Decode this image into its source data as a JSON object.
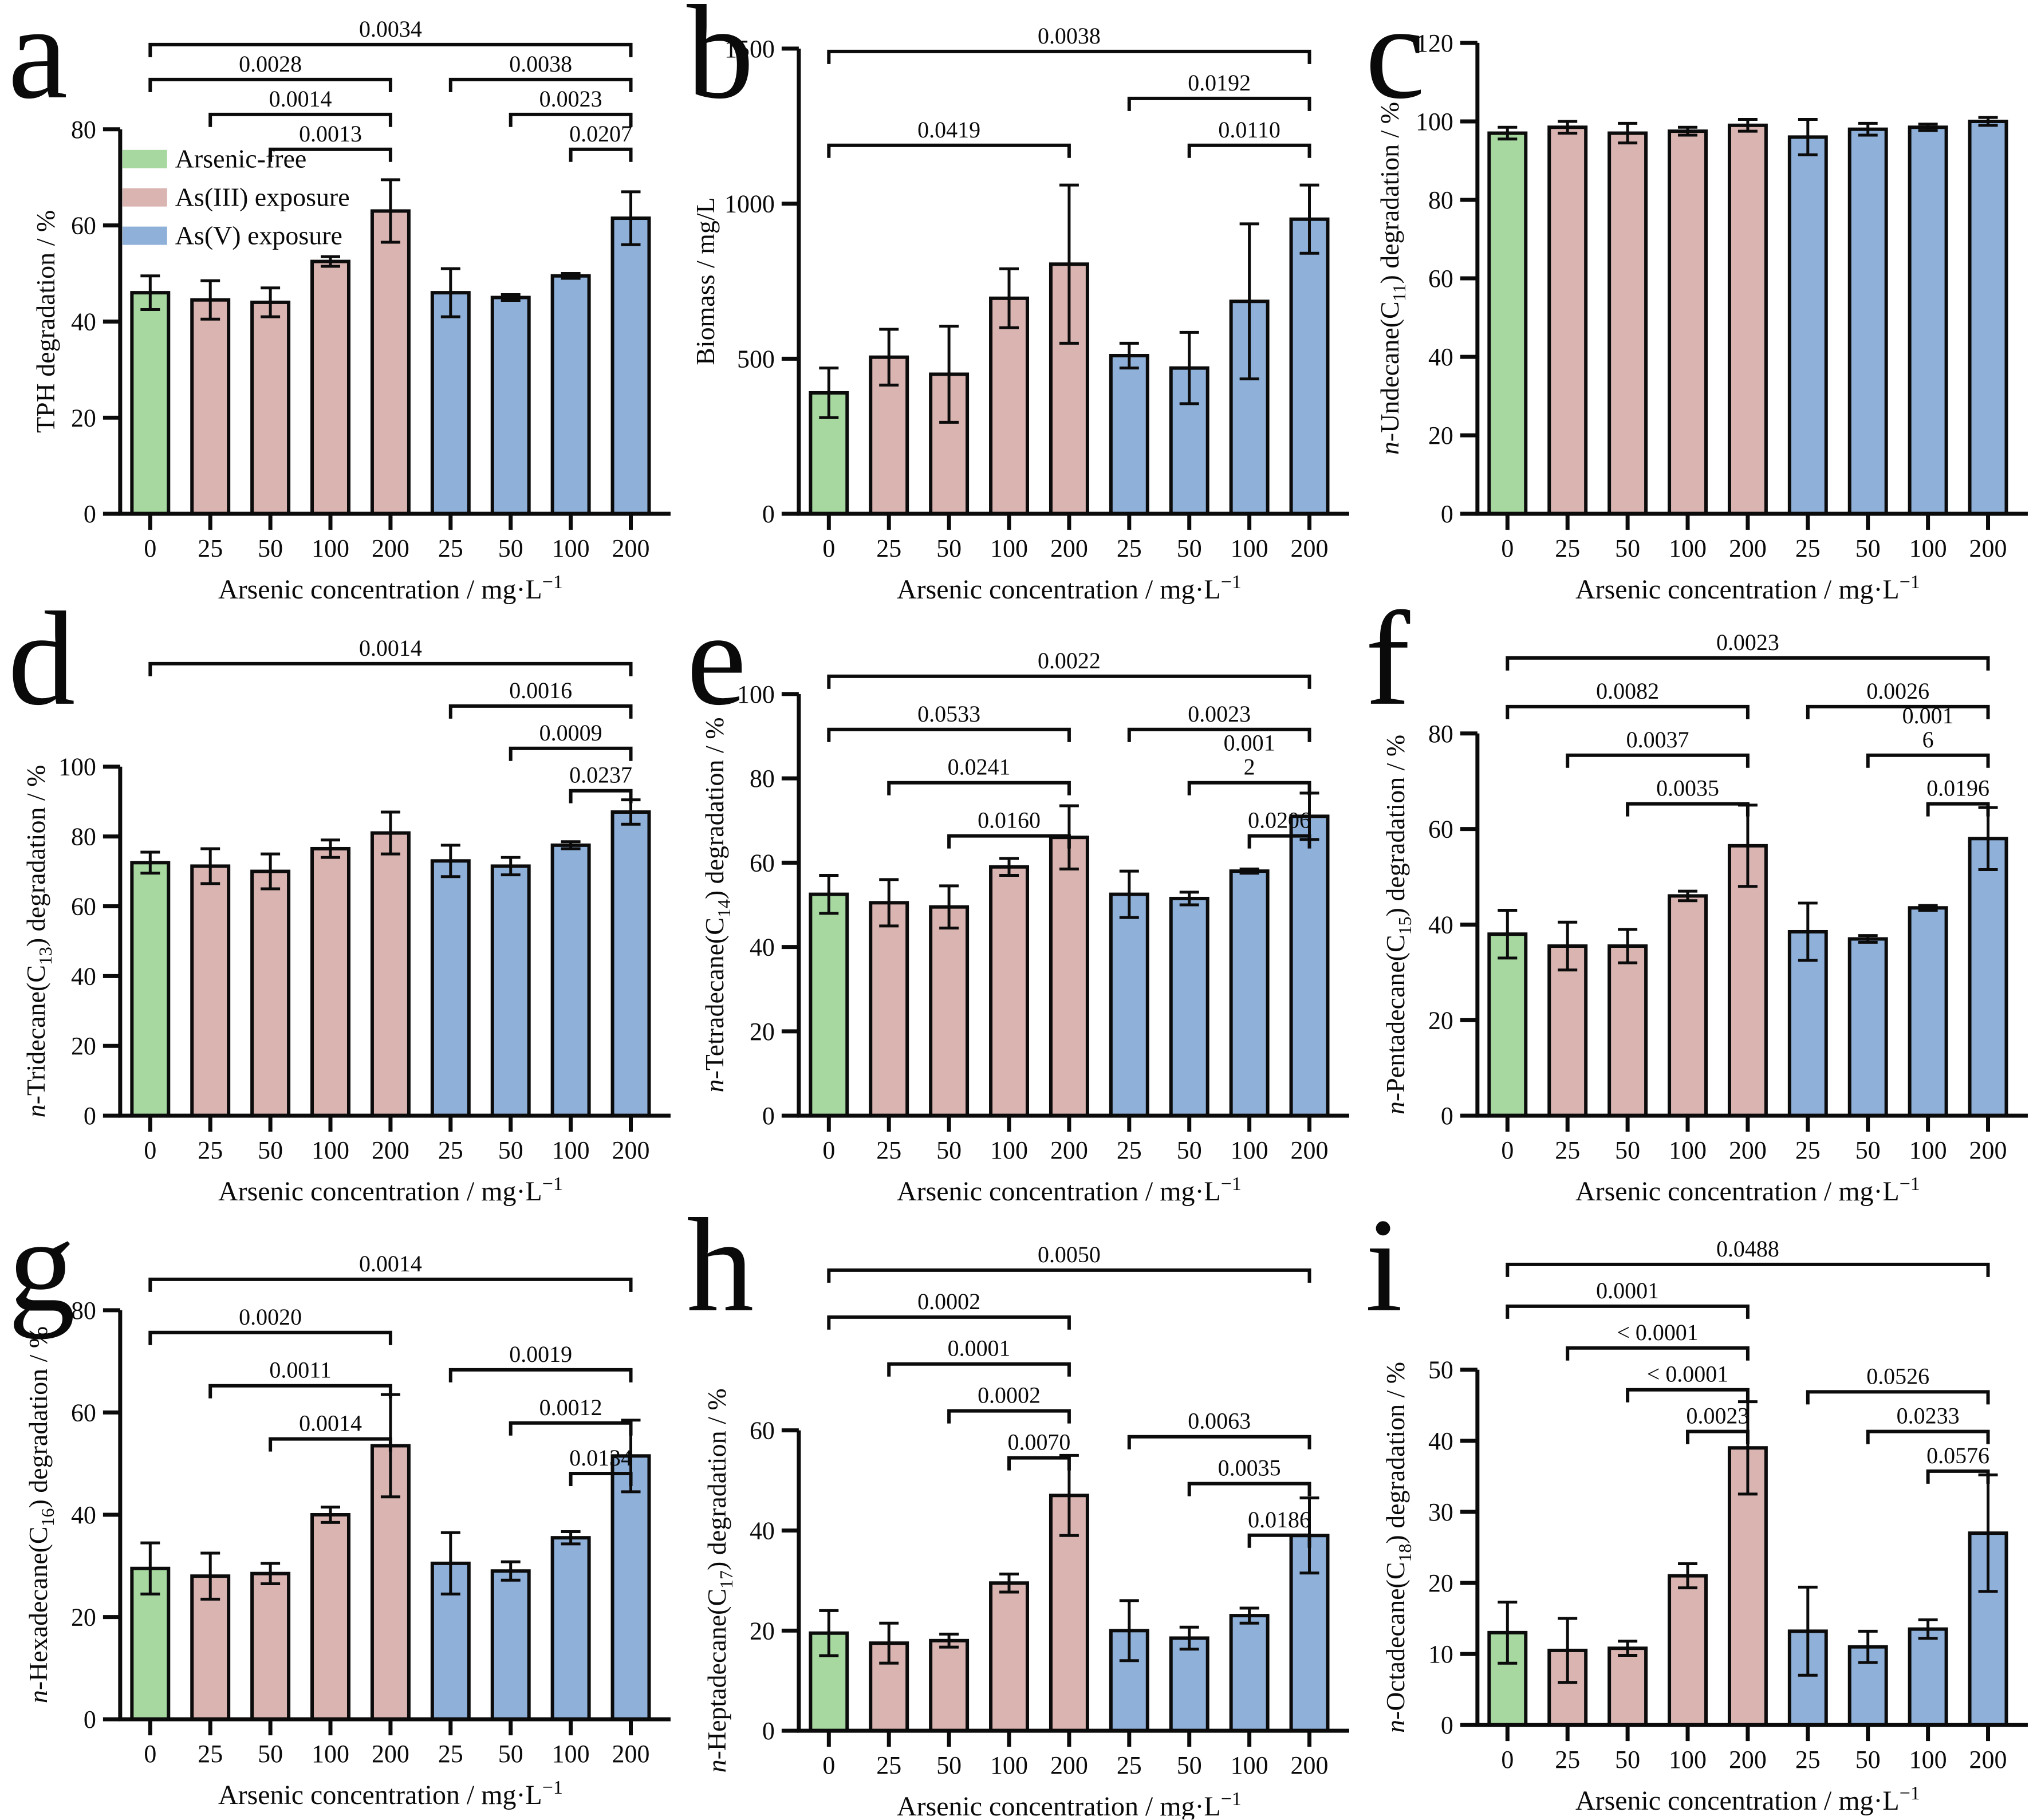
{
  "figure": {
    "background": "#ffffff",
    "xlabel": {
      "text": "Arsenic concentration / mg·L",
      "sup": "−1"
    },
    "categories": [
      "0",
      "25",
      "50",
      "100",
      "200",
      "25",
      "50",
      "100",
      "200"
    ],
    "bar_groups": [
      "free",
      "as3",
      "as3",
      "as3",
      "as3",
      "as5",
      "as5",
      "as5",
      "as5"
    ],
    "colors": {
      "free": "#a6d8a0",
      "as3": "#d9b4b1",
      "as5": "#8fb1d9",
      "edge": "#0b0b0b",
      "text": "#0a0a0a"
    },
    "legend": {
      "shown_in_panel": "a",
      "items": [
        {
          "label": "Arsenic-free",
          "key": "free"
        },
        {
          "label": "As(III) exposure",
          "key": "as3"
        },
        {
          "label": "As(V) exposure",
          "key": "as5"
        }
      ]
    }
  },
  "chart_data": [
    {
      "panel": "a",
      "type": "bar",
      "ylabel_segments": [
        {
          "t": "TPH degradation / %"
        }
      ],
      "ylim": [
        0,
        80
      ],
      "yticks": [
        0,
        20,
        40,
        60,
        80
      ],
      "values": [
        46,
        44.5,
        44,
        52.5,
        63,
        46,
        45,
        49.5,
        61.5
      ],
      "errors": [
        3.5,
        4,
        3,
        1,
        6.5,
        5,
        0.6,
        0.5,
        5.5
      ],
      "brackets": [
        {
          "from": 0,
          "to": 8,
          "row": 0,
          "label": "0.0034"
        },
        {
          "from": 0,
          "to": 4,
          "row": 1,
          "label": "0.0028"
        },
        {
          "from": 5,
          "to": 8,
          "row": 1,
          "label": "0.0038"
        },
        {
          "from": 1,
          "to": 4,
          "row": 2,
          "label": "0.0014"
        },
        {
          "from": 6,
          "to": 8,
          "row": 2,
          "label": "0.0023"
        },
        {
          "from": 2,
          "to": 4,
          "row": 3,
          "label": "0.0013"
        },
        {
          "from": 7,
          "to": 8,
          "row": 3,
          "label": "0.0207"
        }
      ],
      "layout": {
        "top": 226,
        "bottom": 898,
        "bracket_y0": 78,
        "bracket_pitch": 61,
        "ylabel_x": 95,
        "show_legend": true
      }
    },
    {
      "panel": "b",
      "type": "bar",
      "ylabel_segments": [
        {
          "t": "Biomass / mg/L"
        }
      ],
      "ylim": [
        0,
        1500
      ],
      "yticks": [
        0,
        500,
        1000,
        1500
      ],
      "values": [
        390,
        505,
        450,
        695,
        805,
        510,
        470,
        685,
        950
      ],
      "errors": [
        80,
        90,
        155,
        95,
        255,
        40,
        115,
        250,
        110
      ],
      "brackets": [
        {
          "from": 0,
          "to": 8,
          "row": 0,
          "label": "0.0038"
        },
        {
          "from": 5,
          "to": 8,
          "row": 1,
          "label": "0.0192"
        },
        {
          "from": 0,
          "to": 4,
          "row": 2,
          "label": "0.0419"
        },
        {
          "from": 6,
          "to": 8,
          "row": 2,
          "label": "0.0110"
        }
      ],
      "layout": {
        "top": 85,
        "bottom": 898,
        "bracket_y0": 90,
        "bracket_pitch": 82,
        "ylabel_x": 62,
        "show_legend": false
      }
    },
    {
      "panel": "c",
      "type": "bar",
      "ylabel_segments": [
        {
          "t": "n",
          "i": 1
        },
        {
          "t": "-Undecane(C"
        },
        {
          "t": "11",
          "sub": 1
        },
        {
          "t": ") degradation / %"
        }
      ],
      "ylim": [
        0,
        120
      ],
      "yticks": [
        0,
        20,
        40,
        60,
        80,
        100,
        120
      ],
      "values": [
        97,
        98.5,
        97,
        97.5,
        99,
        96,
        98,
        98.5,
        100
      ],
      "errors": [
        1.5,
        1.5,
        2.5,
        1,
        1.5,
        4.5,
        1.5,
        0.8,
        1
      ],
      "brackets": [],
      "layout": {
        "top": 75,
        "bottom": 898,
        "bracket_y0": 0,
        "bracket_pitch": 60,
        "ylabel_x": 72,
        "show_legend": false
      }
    },
    {
      "panel": "d",
      "type": "bar",
      "ylabel_segments": [
        {
          "t": "n",
          "i": 1
        },
        {
          "t": "-Tridecane(C"
        },
        {
          "t": "13",
          "sub": 1
        },
        {
          "t": ") degradation / %"
        }
      ],
      "ylim": [
        0,
        100
      ],
      "yticks": [
        0,
        20,
        40,
        60,
        80,
        100
      ],
      "values": [
        72.5,
        71.5,
        70,
        76.5,
        81,
        73,
        71.5,
        77.5,
        87
      ],
      "errors": [
        3,
        5,
        5,
        2.5,
        6,
        4.5,
        2.5,
        1,
        3.5
      ],
      "brackets": [
        {
          "from": 0,
          "to": 8,
          "row": 0,
          "label": "0.0014"
        },
        {
          "from": 5,
          "to": 8,
          "row": 1,
          "label": "0.0016"
        },
        {
          "from": 6,
          "to": 8,
          "row": 2,
          "label": "0.0009"
        },
        {
          "from": 7,
          "to": 8,
          "row": 3,
          "label": "0.0237"
        }
      ],
      "layout": {
        "top": 280,
        "bottom": 890,
        "bracket_y0": 100,
        "bracket_pitch": 74,
        "ylabel_x": 78,
        "show_legend": false
      }
    },
    {
      "panel": "e",
      "type": "bar",
      "ylabel_segments": [
        {
          "t": "n",
          "i": 1
        },
        {
          "t": "-Tetradecane(C"
        },
        {
          "t": "14",
          "sub": 1
        },
        {
          "t": ") degradation / %"
        }
      ],
      "ylim": [
        0,
        100
      ],
      "yticks": [
        0,
        20,
        40,
        60,
        80,
        100
      ],
      "values": [
        52.5,
        50.5,
        49.5,
        59,
        66,
        52.5,
        51.5,
        58,
        71
      ],
      "errors": [
        4.5,
        5.5,
        5,
        2,
        7.5,
        5.5,
        1.5,
        0.5,
        5.5
      ],
      "brackets": [
        {
          "from": 0,
          "to": 8,
          "row": 0,
          "label": "0.0022"
        },
        {
          "from": 0,
          "to": 4,
          "row": 1,
          "label": "0.0533"
        },
        {
          "from": 5,
          "to": 8,
          "row": 1,
          "label": "0.0023"
        },
        {
          "from": 1,
          "to": 4,
          "row": 2,
          "label": "0.0241"
        },
        {
          "from": 6,
          "to": 8,
          "row": 2,
          "label": "0.001\n2"
        },
        {
          "from": 2,
          "to": 4,
          "row": 3,
          "label": "0.0160"
        },
        {
          "from": 7,
          "to": 8,
          "row": 3,
          "label": "0.0206"
        }
      ],
      "layout": {
        "top": 153,
        "bottom": 890,
        "bracket_y0": 122,
        "bracket_pitch": 93,
        "ylabel_x": 78,
        "show_legend": false
      }
    },
    {
      "panel": "f",
      "type": "bar",
      "ylabel_segments": [
        {
          "t": "n",
          "i": 1
        },
        {
          "t": "-Pentadecane(C"
        },
        {
          "t": "15",
          "sub": 1
        },
        {
          "t": ") degradation / %"
        }
      ],
      "ylim": [
        0,
        80
      ],
      "yticks": [
        0,
        20,
        40,
        60,
        80
      ],
      "values": [
        38,
        35.5,
        35.5,
        46,
        56.5,
        38.5,
        37,
        43.5,
        58
      ],
      "errors": [
        5,
        5,
        3.5,
        1,
        8.5,
        6,
        0.7,
        0.5,
        6.5
      ],
      "brackets": [
        {
          "from": 0,
          "to": 8,
          "row": 0,
          "label": "0.0023"
        },
        {
          "from": 0,
          "to": 4,
          "row": 1,
          "label": "0.0082"
        },
        {
          "from": 5,
          "to": 8,
          "row": 1,
          "label": "0.0026"
        },
        {
          "from": 1,
          "to": 4,
          "row": 2,
          "label": "0.0037"
        },
        {
          "from": 6,
          "to": 8,
          "row": 2,
          "label": "0.001\n6"
        },
        {
          "from": 2,
          "to": 4,
          "row": 3,
          "label": "0.0035"
        },
        {
          "from": 7,
          "to": 8,
          "row": 3,
          "label": "0.0196"
        }
      ],
      "layout": {
        "top": 222,
        "bottom": 890,
        "bracket_y0": 90,
        "bracket_pitch": 85,
        "ylabel_x": 82,
        "show_legend": false
      }
    },
    {
      "panel": "g",
      "type": "bar",
      "ylabel_segments": [
        {
          "t": "n",
          "i": 1
        },
        {
          "t": "-Hexadecane(C"
        },
        {
          "t": "16",
          "sub": 1
        },
        {
          "t": ") degradation / %"
        }
      ],
      "ylim": [
        0,
        80
      ],
      "yticks": [
        0,
        20,
        40,
        60,
        80
      ],
      "values": [
        29.5,
        28,
        28.5,
        40,
        53.5,
        30.5,
        29,
        35.5,
        51.5
      ],
      "errors": [
        5,
        4.5,
        2,
        1.5,
        10,
        6,
        1.8,
        1.2,
        7
      ],
      "brackets": [
        {
          "from": 0,
          "to": 8,
          "row": 0,
          "label": "0.0014"
        },
        {
          "from": 0,
          "to": 4,
          "row": 1,
          "label": "0.0020"
        },
        {
          "from": 5,
          "to": 8,
          "row": 1.7,
          "label": "0.0019"
        },
        {
          "from": 1,
          "to": 4,
          "row": 2,
          "label": "0.0011"
        },
        {
          "from": 6,
          "to": 8,
          "row": 2.7,
          "label": "0.0012"
        },
        {
          "from": 2,
          "to": 4,
          "row": 3,
          "label": "0.0014"
        },
        {
          "from": 7,
          "to": 8,
          "row": 3.65,
          "label": "0.0134"
        }
      ],
      "layout": {
        "top": 170,
        "bottom": 885,
        "bracket_y0": 116,
        "bracket_pitch": 93,
        "ylabel_x": 82,
        "show_legend": false
      }
    },
    {
      "panel": "h",
      "type": "bar",
      "ylabel_segments": [
        {
          "t": "n",
          "i": 1
        },
        {
          "t": "-Heptadecane(C"
        },
        {
          "t": "17",
          "sub": 1
        },
        {
          "t": ") degradation / %"
        }
      ],
      "ylim": [
        0,
        60
      ],
      "yticks": [
        0,
        20,
        40,
        60
      ],
      "values": [
        19.5,
        17.5,
        18,
        29.5,
        47,
        20,
        18.5,
        23,
        39
      ],
      "errors": [
        4.5,
        4,
        1.3,
        1.8,
        8,
        6,
        2.2,
        1.5,
        7.5
      ],
      "brackets": [
        {
          "from": 0,
          "to": 8,
          "row": 0,
          "label": "0.0050"
        },
        {
          "from": 0,
          "to": 4,
          "row": 1,
          "label": "0.0002"
        },
        {
          "from": 1,
          "to": 4,
          "row": 2,
          "label": "0.0001"
        },
        {
          "from": 2,
          "to": 4,
          "row": 3,
          "label": "0.0002"
        },
        {
          "from": 5,
          "to": 8,
          "row": 3.55,
          "label": "0.0063"
        },
        {
          "from": 3,
          "to": 4,
          "row": 4,
          "label": "0.0070"
        },
        {
          "from": 6,
          "to": 8,
          "row": 4.55,
          "label": "0.0035"
        },
        {
          "from": 7,
          "to": 8,
          "row": 5.65,
          "label": "0.0186"
        }
      ],
      "layout": {
        "top": 380,
        "bottom": 905,
        "bracket_y0": 100,
        "bracket_pitch": 82,
        "ylabel_x": 82,
        "show_legend": false
      }
    },
    {
      "panel": "i",
      "type": "bar",
      "ylabel_segments": [
        {
          "t": "n",
          "i": 1
        },
        {
          "t": "-Octadecane(C"
        },
        {
          "t": "18",
          "sub": 1
        },
        {
          "t": ") degradation / %"
        }
      ],
      "ylim": [
        0,
        50
      ],
      "yticks": [
        0,
        10,
        20,
        30,
        40,
        50
      ],
      "values": [
        13,
        10.5,
        10.8,
        21,
        39,
        13.2,
        11,
        13.5,
        27
      ],
      "errors": [
        4.3,
        4.5,
        1,
        1.7,
        6.5,
        6.2,
        2.2,
        1.3,
        8.2
      ],
      "brackets": [
        {
          "from": 0,
          "to": 8,
          "row": 0,
          "label": "0.0488"
        },
        {
          "from": 0,
          "to": 4,
          "row": 1,
          "label": "0.0001"
        },
        {
          "from": 1,
          "to": 4,
          "row": 2,
          "label": "< 0.0001"
        },
        {
          "from": 2,
          "to": 4,
          "row": 3,
          "label": "< 0.0001"
        },
        {
          "from": 5,
          "to": 8,
          "row": 3.05,
          "label": "0.0526"
        },
        {
          "from": 3,
          "to": 4,
          "row": 4,
          "label": "0.0023"
        },
        {
          "from": 6,
          "to": 8,
          "row": 4.0,
          "label": "0.0233"
        },
        {
          "from": 7,
          "to": 8,
          "row": 4.95,
          "label": "0.0576"
        }
      ],
      "layout": {
        "top": 274,
        "bottom": 895,
        "bracket_y0": 90,
        "bracket_pitch": 73,
        "ylabel_x": 82,
        "show_legend": false
      }
    }
  ]
}
